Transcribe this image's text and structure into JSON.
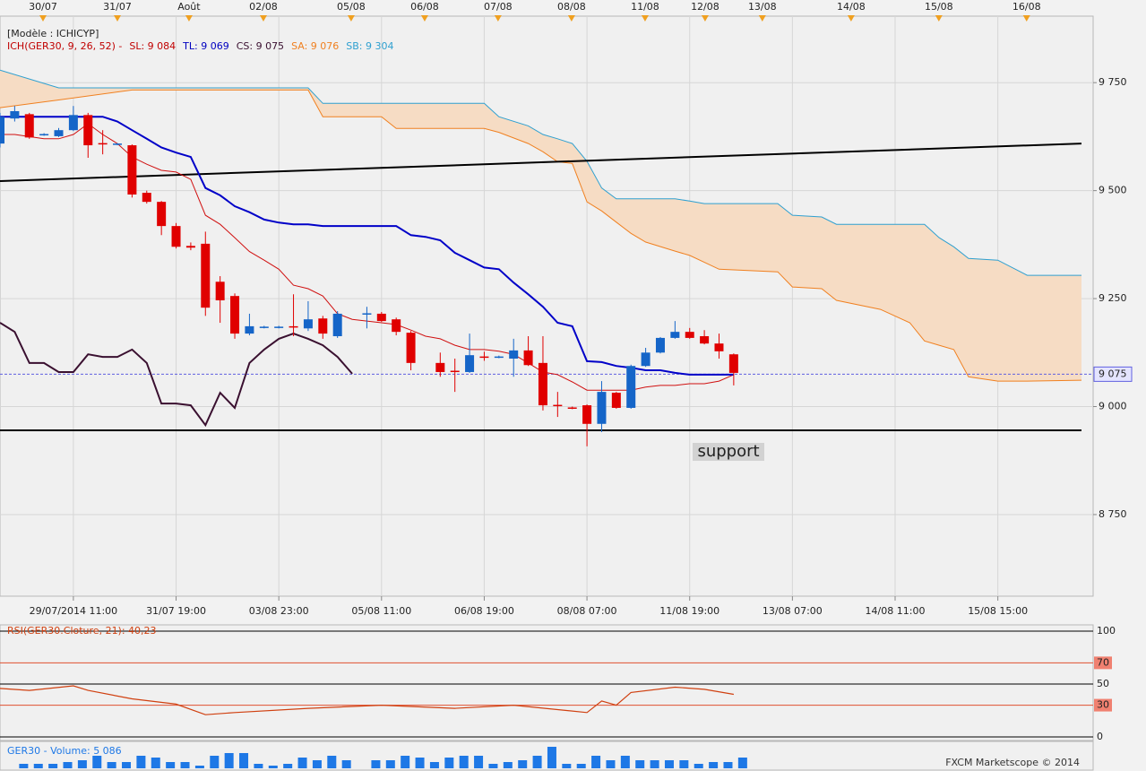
{
  "chart_data": [
    {
      "type": "candlestick",
      "model_label": "[Modèle : ICHICYP]",
      "legend": [
        {
          "text": "ICH(GER30, 9, 26, 52) -",
          "color": "#c00000"
        },
        {
          "text": "SL: 9 084",
          "color": "#c00000"
        },
        {
          "text": "TL: 9 069",
          "color": "#0000c0"
        },
        {
          "text": "CS: 9 075",
          "color": "#3a1030"
        },
        {
          "text": "SA: 9 076",
          "color": "#f08020"
        },
        {
          "text": "SB: 9 304",
          "color": "#2fa0d0"
        }
      ],
      "xlim": [
        0,
        73.7
      ],
      "ylim": [
        8561,
        9904
      ],
      "yticks": [
        {
          "value": 9750,
          "label": "9 750"
        },
        {
          "value": 9500,
          "label": "9 500"
        },
        {
          "value": 9250,
          "label": "9 250"
        },
        {
          "value": 9000,
          "label": "9 000"
        },
        {
          "value": 8750,
          "label": "8 750"
        }
      ],
      "xticks": [
        {
          "value": 5,
          "label": "29/07/2014 11:00"
        },
        {
          "value": 12,
          "label": "31/07 19:00"
        },
        {
          "value": 19,
          "label": "03/08 23:00"
        },
        {
          "value": 26,
          "label": "05/08 11:00"
        },
        {
          "value": 33,
          "label": "06/08 19:00"
        },
        {
          "value": 40,
          "label": "08/08 07:00"
        },
        {
          "value": 47,
          "label": "11/08 19:00"
        },
        {
          "value": 54,
          "label": "13/08 07:00"
        },
        {
          "value": 61,
          "label": "14/08 11:00"
        },
        {
          "value": 68,
          "label": "15/08 15:00"
        }
      ],
      "top_ticks": [
        {
          "value": 2.93,
          "label": "30/07"
        },
        {
          "value": 8.0,
          "label": "31/07"
        },
        {
          "value": 12.88,
          "label": "Août"
        },
        {
          "value": 17.95,
          "label": "02/08"
        },
        {
          "value": 23.93,
          "label": "05/08"
        },
        {
          "value": 28.94,
          "label": "06/08"
        },
        {
          "value": 33.94,
          "label": "07/08"
        },
        {
          "value": 38.95,
          "label": "08/08"
        },
        {
          "value": 43.96,
          "label": "11/08"
        },
        {
          "value": 48.05,
          "label": "12/08"
        },
        {
          "value": 51.95,
          "label": "13/08"
        },
        {
          "value": 58.0,
          "label": "14/08"
        },
        {
          "value": 63.98,
          "label": "15/08"
        },
        {
          "value": 69.96,
          "label": "16/08"
        }
      ],
      "grid": true,
      "up_color": "#1565c8",
      "down_color": "#e00000",
      "x": [
        0,
        1,
        2,
        3,
        4,
        5,
        6,
        7,
        8,
        9,
        10,
        11,
        12,
        13,
        14,
        15,
        16,
        17,
        18,
        19,
        20,
        21,
        22,
        23,
        25,
        26,
        27,
        28,
        30,
        31,
        32,
        33,
        34,
        35,
        36,
        37,
        38,
        39,
        40,
        41,
        42,
        43,
        44,
        45,
        46,
        47,
        48,
        49,
        50
      ],
      "open": [
        9609,
        9667,
        9677,
        9629,
        9626,
        9640,
        9675,
        9610,
        9607,
        9605,
        9495,
        9474,
        9418,
        9372,
        9377,
        9289,
        9256,
        9169,
        9183,
        9183,
        9186,
        9181,
        9204,
        9163,
        9214,
        9215,
        9202,
        9171,
        9101,
        9083,
        9080,
        9116,
        9114,
        9111,
        9130,
        9101,
        9004,
        8998,
        9003,
        8960,
        9032,
        8997,
        9094,
        9125,
        9159,
        9173,
        9163,
        9146,
        9121
      ],
      "high": [
        9680,
        9696,
        9680,
        9633,
        9645,
        9696,
        9680,
        9640,
        9610,
        9607,
        9500,
        9476,
        9425,
        9380,
        9405,
        9302,
        9262,
        9215,
        9187,
        9187,
        9260,
        9244,
        9210,
        9221,
        9231,
        9219,
        9206,
        9175,
        9125,
        9111,
        9169,
        9127,
        9118,
        9157,
        9163,
        9163,
        9034,
        9000,
        9005,
        9059,
        9034,
        9097,
        9136,
        9161,
        9198,
        9182,
        9177,
        9169,
        9123
      ],
      "low": [
        9600,
        9660,
        9620,
        9627,
        9624,
        9638,
        9576,
        9584,
        9605,
        9484,
        9470,
        9397,
        9366,
        9362,
        9210,
        9194,
        9157,
        9165,
        9181,
        9181,
        9163,
        9175,
        9157,
        9159,
        9181,
        9196,
        9165,
        9084,
        9069,
        9034,
        9078,
        9106,
        9112,
        9069,
        9094,
        8991,
        8976,
        8994,
        8908,
        8941,
        8995,
        8995,
        9092,
        9123,
        9157,
        9157,
        9144,
        9111,
        9049
      ],
      "close": [
        9671,
        9684,
        9623,
        9631,
        9640,
        9675,
        9605,
        9609,
        9609,
        9491,
        9474,
        9418,
        9370,
        9368,
        9229,
        9246,
        9169,
        9186,
        9185,
        9185,
        9183,
        9202,
        9169,
        9215,
        9216,
        9198,
        9173,
        9101,
        9080,
        9081,
        9119,
        9114,
        9116,
        9130,
        9096,
        9003,
        9002,
        8996,
        8960,
        9034,
        8997,
        9094,
        9125,
        9159,
        9173,
        9159,
        9146,
        9128,
        9078
      ],
      "cloud": {
        "fill": "#f6dcc4",
        "sa_color": "#f08020",
        "sb_color": "#2fa0d0",
        "x": [
          0,
          4,
          9,
          21,
          22,
          26,
          27,
          33,
          34,
          36,
          37,
          38,
          39,
          40,
          41,
          42,
          43,
          44,
          46,
          47,
          48,
          49,
          53,
          54,
          56,
          57,
          60,
          62,
          63,
          64,
          65,
          66,
          68,
          70,
          73.7
        ],
        "sa": [
          9692,
          9710,
          9733,
          9733,
          9671,
          9671,
          9644,
          9644,
          9635,
          9609,
          9590,
          9567,
          9563,
          9474,
          9453,
          9427,
          9401,
          9381,
          9360,
          9350,
          9334,
          9318,
          9312,
          9277,
          9273,
          9246,
          9225,
          9194,
          9152,
          9142,
          9132,
          9069,
          9059,
          9059,
          9061
        ],
        "sb": [
          9779,
          9738,
          9738,
          9738,
          9702,
          9702,
          9702,
          9702,
          9671,
          9650,
          9630,
          9620,
          9609,
          9568,
          9506,
          9481,
          9481,
          9481,
          9481,
          9476,
          9470,
          9470,
          9470,
          9443,
          9439,
          9422,
          9422,
          9422,
          9422,
          9391,
          9370,
          9343,
          9339,
          9304,
          9304
        ]
      },
      "lines": [
        {
          "color": "#d01010",
          "width": 1,
          "x": [
            0,
            1,
            2,
            3,
            4,
            5,
            6,
            7,
            8,
            9,
            10,
            11,
            12,
            13,
            14,
            15,
            16,
            17,
            18,
            19,
            20,
            21,
            22,
            23,
            24,
            25,
            26,
            27,
            28,
            29,
            30,
            31,
            32,
            33,
            34,
            35,
            36,
            37,
            38,
            39,
            40,
            41,
            42,
            43,
            44,
            45,
            46,
            47,
            48,
            49,
            50
          ],
          "values": [
            9630,
            9630,
            9625,
            9620,
            9620,
            9630,
            9655,
            9630,
            9609,
            9578,
            9561,
            9547,
            9543,
            9526,
            9443,
            9422,
            9391,
            9359,
            9339,
            9318,
            9281,
            9273,
            9256,
            9215,
            9202,
            9198,
            9194,
            9190,
            9177,
            9163,
            9157,
            9142,
            9132,
            9132,
            9128,
            9121,
            9101,
            9080,
            9074,
            9057,
            9038,
            9038,
            9038,
            9038,
            9045,
            9049,
            9049,
            9053,
            9053,
            9059,
            9074
          ]
        },
        {
          "color": "#0000c8",
          "width": 2,
          "x": [
            0,
            1,
            2,
            3,
            4,
            5,
            6,
            7,
            8,
            9,
            10,
            11,
            12,
            13,
            14,
            15,
            16,
            17,
            18,
            19,
            20,
            21,
            22,
            23,
            24,
            25,
            26,
            27,
            28,
            29,
            30,
            31,
            32,
            33,
            34,
            35,
            36,
            37,
            38,
            39,
            40,
            41,
            42,
            43,
            44,
            45,
            46,
            47,
            48,
            49,
            50
          ],
          "values": [
            9671,
            9671,
            9671,
            9671,
            9671,
            9671,
            9671,
            9671,
            9660,
            9640,
            9620,
            9600,
            9588,
            9578,
            9506,
            9489,
            9464,
            9450,
            9433,
            9426,
            9422,
            9422,
            9418,
            9418,
            9418,
            9418,
            9418,
            9418,
            9397,
            9393,
            9385,
            9356,
            9339,
            9322,
            9318,
            9287,
            9260,
            9231,
            9194,
            9186,
            9105,
            9103,
            9094,
            9090,
            9084,
            9084,
            9078,
            9074,
            9074,
            9074,
            9074
          ]
        },
        {
          "color": "#3a1030",
          "width": 2,
          "x": [
            0,
            1,
            2,
            3,
            4,
            5,
            6,
            7,
            8,
            9,
            10,
            11,
            12,
            13,
            14,
            15,
            16,
            17,
            18,
            19,
            20,
            21,
            22,
            23,
            24
          ],
          "values": [
            9194,
            9173,
            9101,
            9101,
            9080,
            9080,
            9121,
            9115,
            9115,
            9132,
            9101,
            9007,
            9007,
            9003,
            8957,
            9032,
            8997,
            9101,
            9132,
            9157,
            9169,
            9157,
            9142,
            9115,
            9076
          ]
        }
      ],
      "trendline": {
        "color": "#000000",
        "x": [
          0,
          73.7
        ],
        "values": [
          9522,
          9609
        ]
      },
      "support": {
        "value": 8945,
        "color": "#000000"
      },
      "current": {
        "value": 9075,
        "label": "9 075",
        "color": "#6060e0"
      }
    },
    {
      "type": "line",
      "label": "RSI(GER30.Cloture, 21): 40,23",
      "color": "#d04010",
      "xlim": [
        0,
        73.7
      ],
      "ylim": [
        -3.4,
        105.9
      ],
      "yticks": [
        100,
        70,
        50,
        30,
        0
      ],
      "tick_colors": [
        "#000000",
        "#e05030",
        "#000000",
        "#e05030",
        "#000000"
      ],
      "x": [
        0,
        2,
        5,
        6,
        9,
        12,
        14,
        16,
        21,
        26,
        31,
        35,
        40,
        41,
        42,
        43,
        46,
        48,
        50
      ],
      "values": [
        45.8,
        44,
        48.3,
        44,
        36,
        31,
        21,
        23,
        27,
        30,
        27,
        30,
        23,
        34,
        30,
        42,
        47,
        45,
        40.23
      ]
    },
    {
      "type": "bar",
      "label": "GER30 - Volume: 5 086",
      "color": "#1e78e6",
      "xlim": [
        0,
        73.7
      ],
      "ylim": [
        0,
        12720
      ],
      "x": [
        1,
        2,
        3,
        4,
        5,
        6,
        7,
        8,
        9,
        10,
        11,
        12,
        13,
        14,
        15,
        16,
        17,
        18,
        19,
        20,
        21,
        22,
        23,
        25,
        26,
        27,
        28,
        29,
        30,
        31,
        32,
        33,
        34,
        35,
        36,
        37,
        38,
        39,
        40,
        41,
        42,
        43,
        44,
        45,
        46,
        47,
        48,
        49,
        50
      ],
      "values": [
        2120,
        2120,
        2120,
        2968,
        3816,
        5936,
        2968,
        2968,
        5936,
        5088,
        2968,
        2968,
        1272,
        5936,
        7208,
        7208,
        2120,
        1272,
        2120,
        5088,
        3816,
        5936,
        3816,
        3816,
        3816,
        5936,
        5088,
        2968,
        5088,
        5936,
        5936,
        2120,
        2968,
        3816,
        5936,
        10176,
        2120,
        2120,
        5936,
        3816,
        5936,
        3816,
        3816,
        3816,
        3816,
        2120,
        2968,
        2968,
        5086
      ]
    }
  ],
  "footer": "FXCM Marketscope © 2014",
  "annotation": "support"
}
